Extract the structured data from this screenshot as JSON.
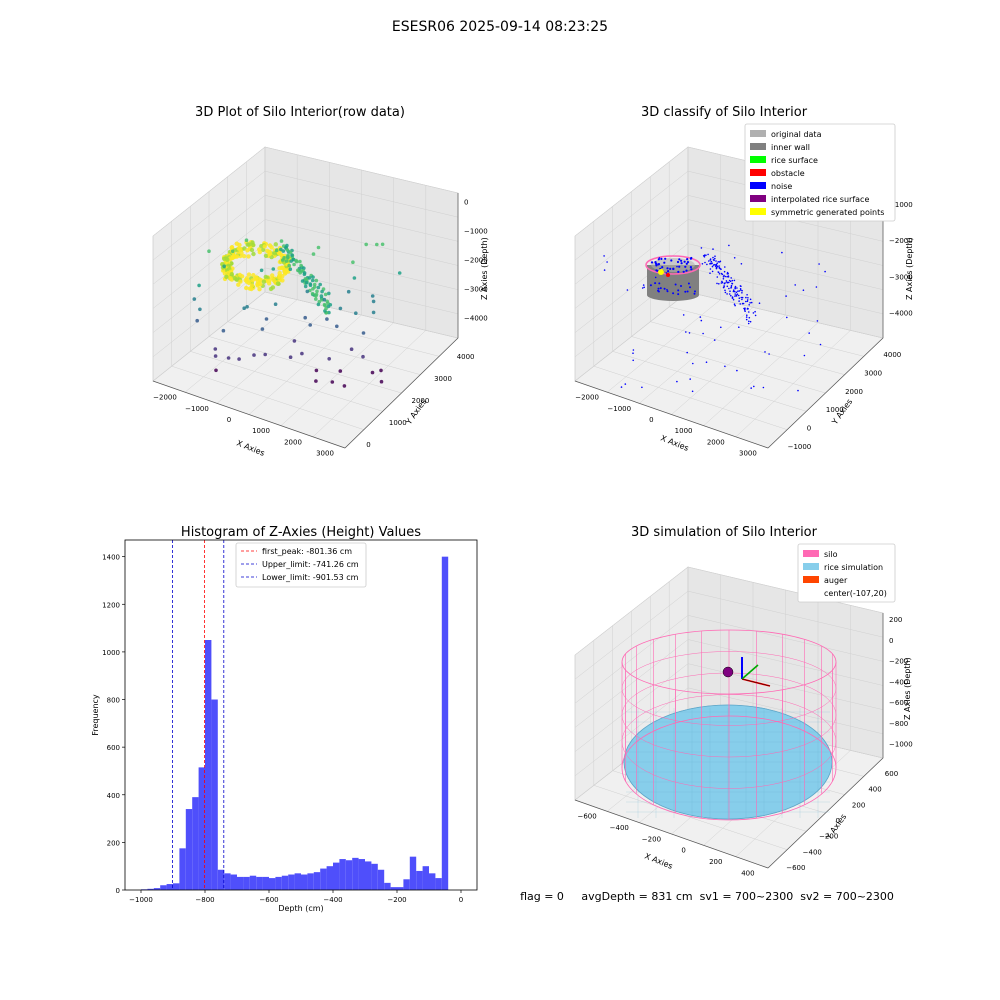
{
  "figure_title": "ESESR06 2025-09-14 08:23:25",
  "status_line": "flag = 0     avgDepth = 831 cm  sv1 = 700~2300  sv2 = 700~2300",
  "colors": {
    "hist_bar": "#4f4ffb",
    "peak_line": "#ff0000",
    "limit_line": "#0000cc",
    "silo": "#ff69b4",
    "rice_simulation": "#87ceeb",
    "auger": "#ff4500",
    "center": "#800080",
    "pane": "#f0f0f0",
    "grid": "#d0d0d0"
  },
  "chart_data": [
    {
      "type": "scatter",
      "subtype": "3d",
      "title": "3D Plot of Silo Interior(row data)",
      "xlabel": "X Axies",
      "ylabel": "Y Axies",
      "zlabel": "Z Axies (Depth)",
      "x_ticks": [
        "−2000",
        "−1000",
        "0",
        "1000",
        "2000",
        "3000"
      ],
      "y_ticks": [
        "0",
        "1000",
        "2000",
        "3000",
        "4000"
      ],
      "z_ticks": [
        "0",
        "−1000",
        "−2000",
        "−3000",
        "−4000"
      ],
      "colormap": "viridis"
    },
    {
      "type": "scatter",
      "subtype": "3d",
      "title": "3D classify of Silo Interior",
      "xlabel": "X Axies",
      "ylabel": "Y Axies",
      "zlabel": "Z Axies (Depth)",
      "x_ticks": [
        "−2000",
        "−1000",
        "0",
        "1000",
        "2000",
        "3000"
      ],
      "y_ticks": [
        "−1000",
        "0",
        "1000",
        "2000",
        "3000",
        "4000"
      ],
      "z_ticks": [
        "−1000",
        "−2000",
        "−3000",
        "−4000"
      ],
      "legend_position": "top-right",
      "legend": [
        {
          "label": "original data",
          "color": "#b0b0b0"
        },
        {
          "label": "inner wall",
          "color": "#808080"
        },
        {
          "label": "rice surface",
          "color": "#00ff00"
        },
        {
          "label": "obstacle",
          "color": "#ff0000"
        },
        {
          "label": "noise",
          "color": "#0000ff"
        },
        {
          "label": "interpolated rice surface",
          "color": "#800080"
        },
        {
          "label": "symmetric generated points",
          "color": "#ffff00"
        }
      ]
    },
    {
      "type": "bar",
      "subtype": "histogram",
      "title": "Histogram of Z-Axies (Height) Values",
      "xlabel": "Depth (cm)",
      "ylabel": "Frequency",
      "xlim": [
        -1050,
        50
      ],
      "ylim": [
        0,
        1470
      ],
      "x_ticks": [
        -1000,
        -800,
        -600,
        -400,
        -200,
        0
      ],
      "x_tick_labels": [
        "−1000",
        "−800",
        "−600",
        "−400",
        "−200",
        "0"
      ],
      "y_ticks": [
        0,
        200,
        400,
        600,
        800,
        1000,
        1200,
        1400
      ],
      "bin_start": -1000,
      "bin_width": 20,
      "values": [
        3,
        5,
        8,
        20,
        25,
        28,
        175,
        340,
        390,
        515,
        1050,
        800,
        85,
        70,
        65,
        55,
        55,
        60,
        55,
        55,
        50,
        55,
        60,
        65,
        70,
        65,
        70,
        75,
        90,
        100,
        115,
        130,
        125,
        135,
        130,
        120,
        110,
        85,
        30,
        12,
        12,
        45,
        140,
        80,
        100,
        70,
        50,
        1400
      ],
      "vlines": [
        {
          "x": -801.36,
          "color": "#ff0000",
          "label": "first_peak: -801.36 cm"
        },
        {
          "x": -741.26,
          "color": "#0000cc",
          "label": "Upper_limit: -741.26 cm"
        },
        {
          "x": -901.53,
          "color": "#0000cc",
          "label": "Lower_limit: -901.53 cm"
        }
      ],
      "legend_position": "top-center"
    },
    {
      "type": "area",
      "subtype": "3d-surface",
      "title": "3D simulation of Silo Interior",
      "xlabel": "X Axies",
      "ylabel": "Y Axies",
      "zlabel": "Z Axies (Depth)",
      "x_ticks": [
        "−600",
        "−400",
        "−200",
        "0",
        "200",
        "400"
      ],
      "y_ticks": [
        "−600",
        "−400",
        "−200",
        "0",
        "200",
        "400",
        "600"
      ],
      "z_ticks": [
        "200",
        "0",
        "−200",
        "−400",
        "−600",
        "−800",
        "−1000"
      ],
      "legend_position": "top-right",
      "legend": [
        {
          "label": "silo",
          "color": "#ff69b4"
        },
        {
          "label": "rice simulation",
          "color": "#87ceeb"
        },
        {
          "label": "auger",
          "color": "#ff4500"
        },
        {
          "label": "center(-107,20)",
          "color": ""
        }
      ]
    }
  ]
}
